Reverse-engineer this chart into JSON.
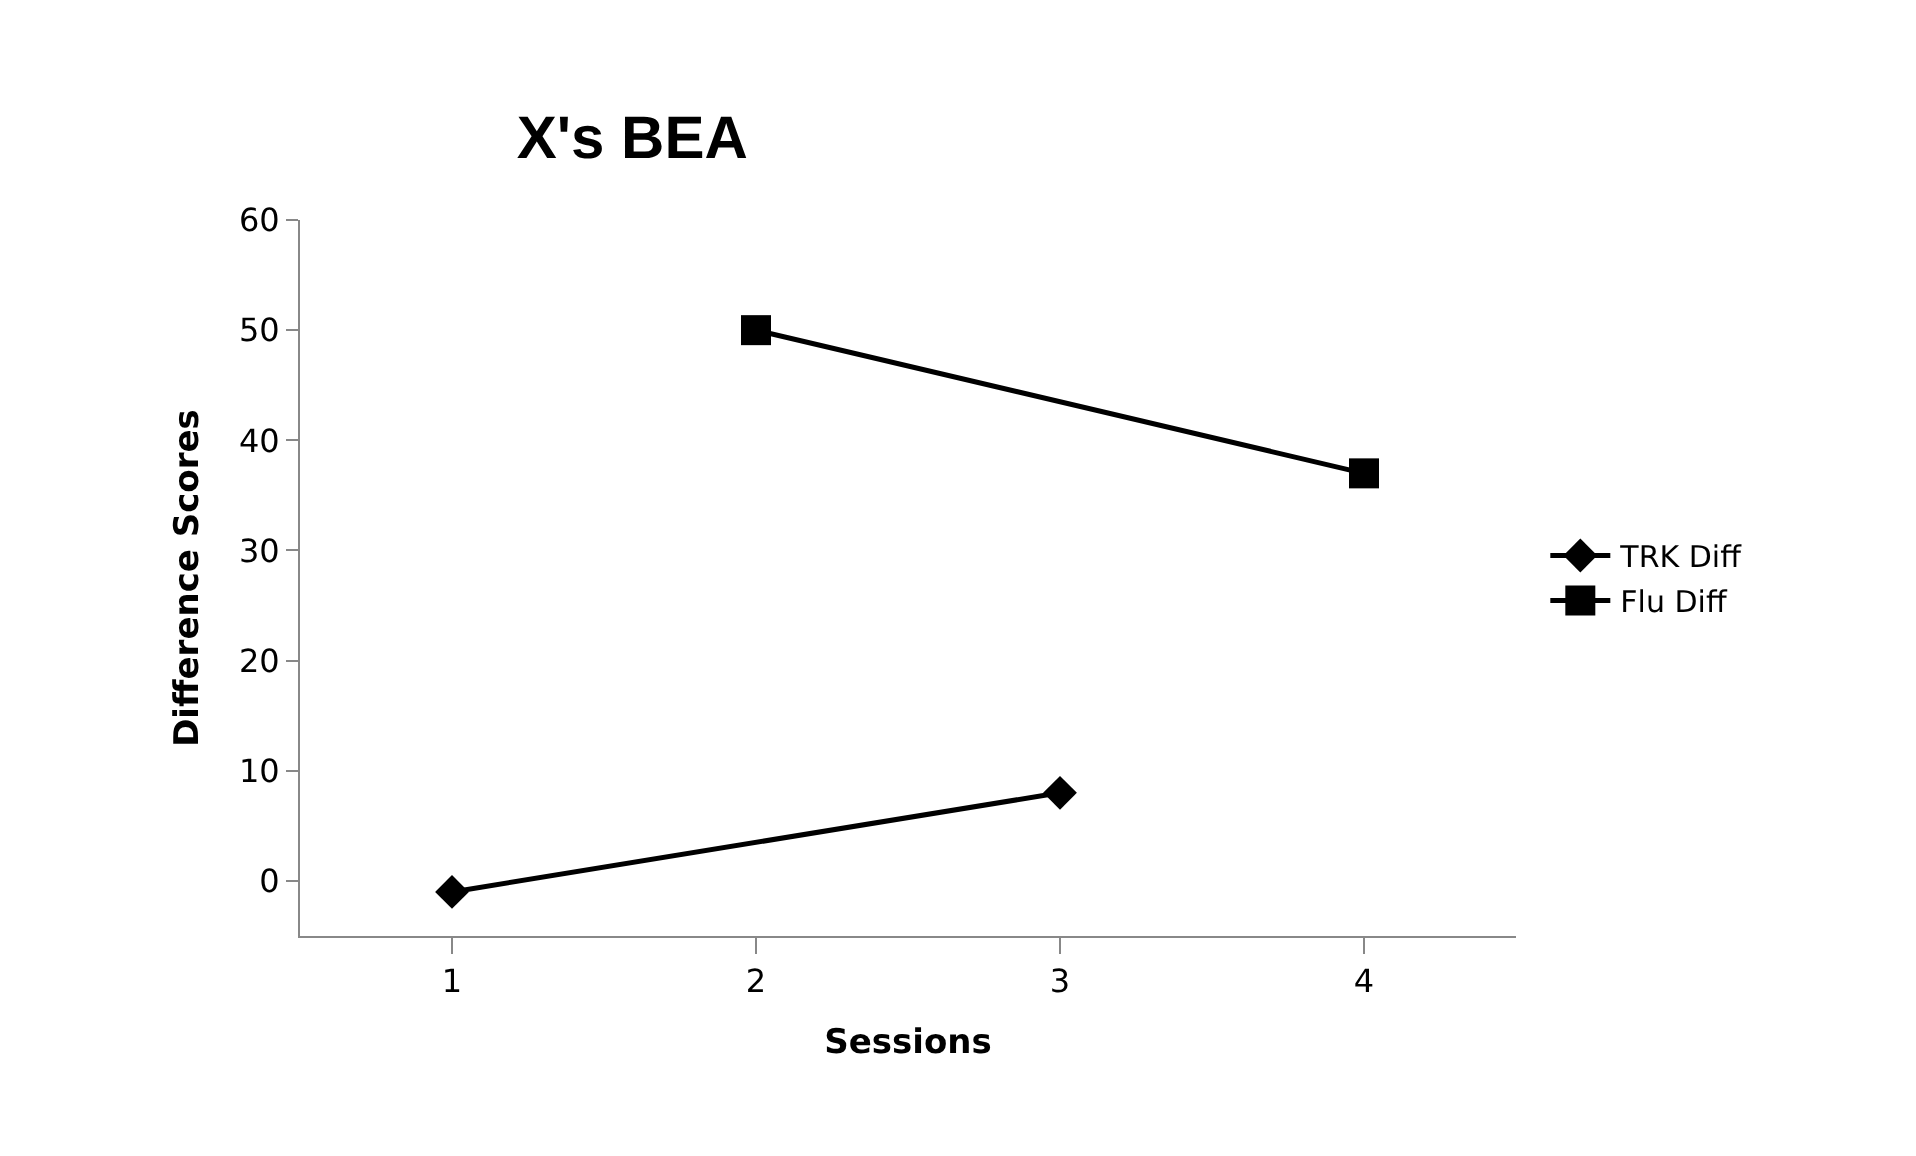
{
  "chart_data": {
    "type": "line",
    "title": "X's BEA",
    "xlabel": "Sessions",
    "ylabel": "Difference Scores",
    "categories": [
      "1",
      "2",
      "3",
      "4"
    ],
    "series": [
      {
        "name": "TRK Diff",
        "color": "#000000",
        "values": [
          -1,
          null,
          8,
          null
        ],
        "marker": "diamond"
      },
      {
        "name": "Flu Diff",
        "color": "#000000",
        "values": [
          null,
          50,
          null,
          37
        ],
        "marker": "square"
      }
    ],
    "ylim": [
      -5,
      60
    ],
    "yticks": [
      0,
      10,
      20,
      30,
      40,
      50,
      60
    ],
    "legend": "right",
    "line_style": "solid"
  }
}
